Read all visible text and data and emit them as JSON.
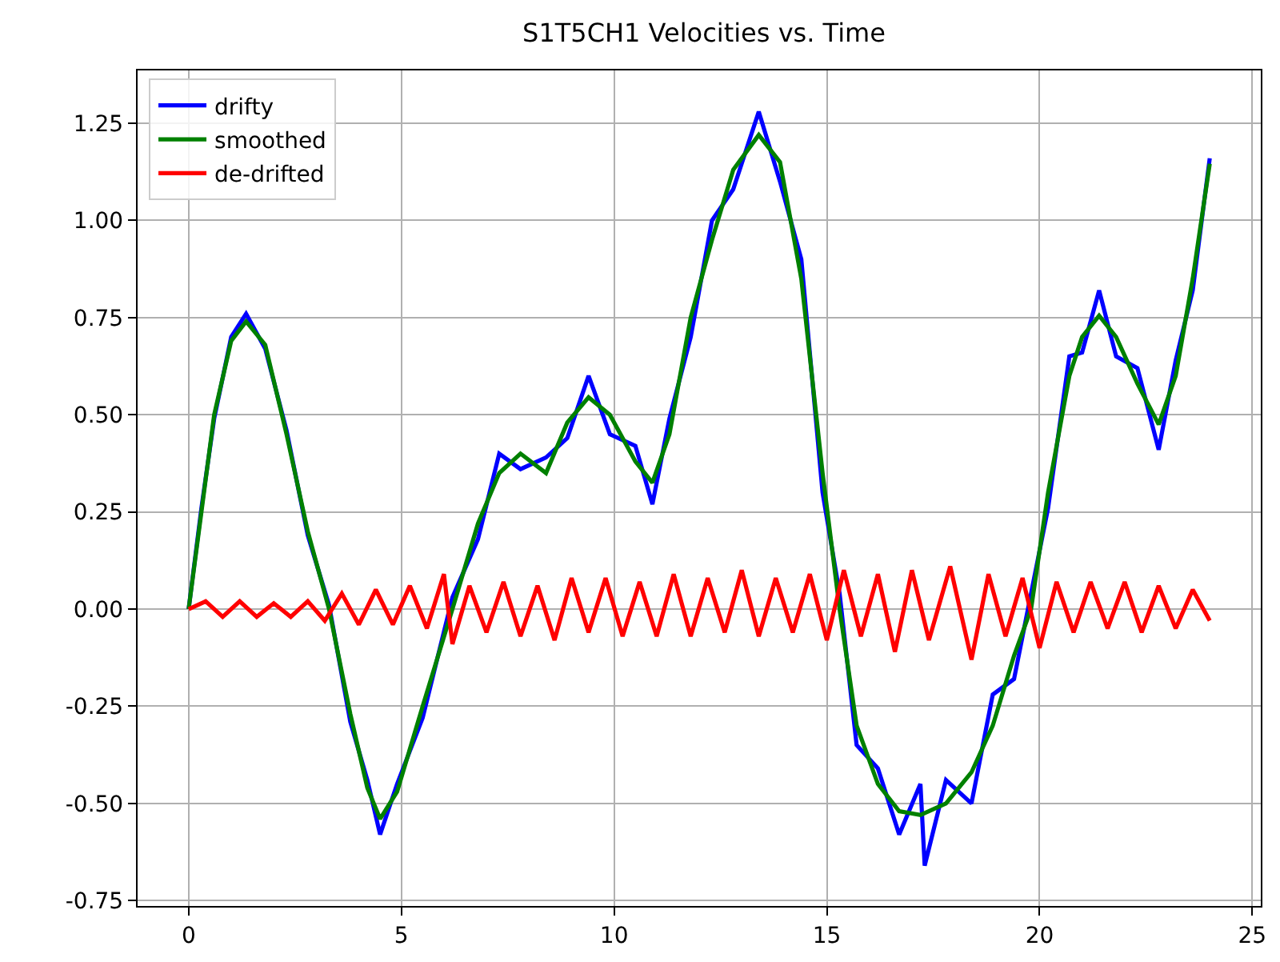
{
  "chart_data": {
    "type": "line",
    "title": "S1T5CH1 Velocities vs. Time",
    "xlim": [
      -1.2,
      25.2
    ],
    "xticks": [
      0,
      5,
      10,
      15,
      20,
      25
    ],
    "ylim": [
      -0.764,
      1.386
    ],
    "yticks": [
      {
        "value": -0.75,
        "label": "-0.75"
      },
      {
        "value": -0.5,
        "label": "-0.50"
      },
      {
        "value": -0.25,
        "label": "-0.25"
      },
      {
        "value": 0,
        "label": "0.00"
      },
      {
        "value": 0.25,
        "label": "0.25"
      },
      {
        "value": 0.5,
        "label": "0.50"
      },
      {
        "value": 0.75,
        "label": "0.75"
      },
      {
        "value": 1.0,
        "label": "1.00"
      },
      {
        "value": 1.25,
        "label": "1.25"
      }
    ],
    "grid": true,
    "legend": "top left",
    "marker": "none",
    "line_style": "solid",
    "series": [
      {
        "name": "drifty",
        "color": "#0000ff",
        "x": [
          0,
          0.3,
          0.6,
          1.0,
          1.35,
          1.8,
          2.3,
          2.8,
          3.3,
          3.8,
          4.2,
          4.5,
          4.9,
          5.5,
          6.2,
          6.8,
          7.3,
          7.8,
          8.4,
          8.9,
          9.4,
          9.9,
          10.5,
          10.9,
          11.3,
          11.8,
          12.3,
          12.8,
          13.4,
          13.9,
          14.4,
          14.9,
          15.3,
          15.7,
          16.2,
          16.7,
          17.2,
          17.3,
          17.8,
          18.4,
          18.9,
          19.4,
          19.8,
          20.2,
          20.7,
          21.0,
          21.4,
          21.8,
          22.3,
          22.8,
          23.2,
          23.6,
          24.0
        ],
        "values": [
          0.0,
          0.26,
          0.49,
          0.7,
          0.76,
          0.67,
          0.46,
          0.19,
          0.01,
          -0.29,
          -0.44,
          -0.58,
          -0.45,
          -0.28,
          0.03,
          0.18,
          0.4,
          0.36,
          0.39,
          0.44,
          0.6,
          0.45,
          0.42,
          0.27,
          0.49,
          0.7,
          1.0,
          1.08,
          1.28,
          1.1,
          0.9,
          0.3,
          0.04,
          -0.35,
          -0.41,
          -0.58,
          -0.45,
          -0.66,
          -0.44,
          -0.5,
          -0.22,
          -0.18,
          0.04,
          0.26,
          0.65,
          0.66,
          0.82,
          0.65,
          0.62,
          0.41,
          0.64,
          0.82,
          1.16
        ]
      },
      {
        "name": "smoothed",
        "color": "#008000",
        "x": [
          0,
          0.3,
          0.6,
          1.0,
          1.35,
          1.8,
          2.3,
          2.8,
          3.3,
          3.8,
          4.2,
          4.5,
          4.9,
          5.5,
          6.2,
          6.8,
          7.3,
          7.8,
          8.4,
          8.9,
          9.4,
          9.9,
          10.5,
          10.9,
          11.3,
          11.8,
          12.3,
          12.8,
          13.4,
          13.9,
          14.4,
          14.9,
          15.3,
          15.7,
          16.2,
          16.7,
          17.2,
          17.8,
          18.4,
          18.9,
          19.4,
          19.8,
          20.2,
          20.7,
          21.0,
          21.4,
          21.8,
          22.3,
          22.8,
          23.2,
          23.6,
          24.0
        ],
        "values": [
          0,
          0.25,
          0.5,
          0.69,
          0.74,
          0.68,
          0.45,
          0.2,
          0.0,
          -0.27,
          -0.46,
          -0.54,
          -0.47,
          -0.25,
          0.0,
          0.22,
          0.35,
          0.4,
          0.35,
          0.48,
          0.545,
          0.5,
          0.38,
          0.325,
          0.45,
          0.75,
          0.95,
          1.13,
          1.22,
          1.15,
          0.85,
          0.35,
          0.0,
          -0.3,
          -0.45,
          -0.52,
          -0.53,
          -0.5,
          -0.42,
          -0.3,
          -0.12,
          0.0,
          0.3,
          0.6,
          0.7,
          0.755,
          0.7,
          0.58,
          0.475,
          0.6,
          0.85,
          1.146
        ]
      },
      {
        "name": "de-drifted",
        "color": "#ff0000",
        "x": [
          0,
          0.4,
          0.8,
          1.2,
          1.6,
          2.0,
          2.4,
          2.8,
          3.2,
          3.6,
          4.0,
          4.4,
          4.8,
          5.2,
          5.6,
          6.0,
          6.2,
          6.6,
          7.0,
          7.4,
          7.8,
          8.2,
          8.6,
          9.0,
          9.4,
          9.8,
          10.2,
          10.6,
          11.0,
          11.4,
          11.8,
          12.2,
          12.6,
          13.0,
          13.4,
          13.8,
          14.2,
          14.6,
          15.0,
          15.4,
          15.8,
          16.2,
          16.6,
          17.0,
          17.4,
          17.9,
          18.4,
          18.8,
          19.2,
          19.6,
          20.0,
          20.4,
          20.8,
          21.2,
          21.6,
          22.0,
          22.4,
          22.8,
          23.2,
          23.6,
          24.0
        ],
        "values": [
          0,
          0.02,
          -0.02,
          0.02,
          -0.02,
          0.015,
          -0.02,
          0.02,
          -0.03,
          0.04,
          -0.04,
          0.05,
          -0.04,
          0.06,
          -0.05,
          0.09,
          -0.09,
          0.06,
          -0.06,
          0.07,
          -0.07,
          0.06,
          -0.08,
          0.08,
          -0.06,
          0.08,
          -0.07,
          0.07,
          -0.07,
          0.09,
          -0.07,
          0.08,
          -0.06,
          0.1,
          -0.07,
          0.08,
          -0.06,
          0.09,
          -0.08,
          0.1,
          -0.07,
          0.09,
          -0.11,
          0.1,
          -0.08,
          0.11,
          -0.13,
          0.09,
          -0.07,
          0.08,
          -0.1,
          0.07,
          -0.06,
          0.07,
          -0.05,
          0.07,
          -0.06,
          0.06,
          -0.05,
          0.05,
          -0.03
        ]
      }
    ]
  }
}
